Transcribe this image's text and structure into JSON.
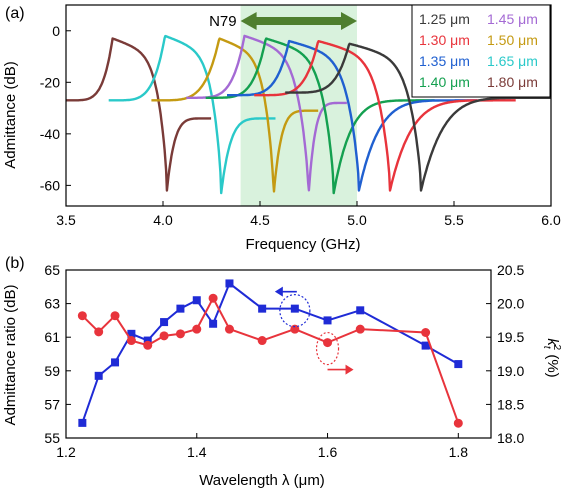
{
  "chart_data": [
    {
      "type": "line",
      "panel_label": "(a)",
      "xlabel": "Frequency (GHz)",
      "ylabel": "Admittance (dB)",
      "xlim": [
        3.5,
        6.0
      ],
      "ylim": [
        -68,
        10
      ],
      "xticks": [
        3.5,
        4.0,
        4.5,
        5.0,
        5.5,
        6.0
      ],
      "yticks": [
        -60,
        -40,
        -20,
        0
      ],
      "xtick_labels": [
        "3.5",
        "4.0",
        "4.5",
        "5.0",
        "5.5",
        "6.0"
      ],
      "ytick_labels": [
        "-60",
        "-40",
        "-20",
        "0"
      ],
      "band": {
        "label": "N79",
        "from": 4.4,
        "to": 5.0,
        "color": "#d9f2dd",
        "arrow_color": "#4f7f2f"
      },
      "legend_position": "top-right",
      "series": [
        {
          "name": "1.80 μm",
          "color": "#7a3b38",
          "x_range": [
            3.5,
            4.25
          ],
          "resonance": 3.74,
          "anti_resonance": 4.02,
          "res_db": -3,
          "anti_db": -62,
          "left_db": -27,
          "right_db": -34
        },
        {
          "name": "1.65 μm",
          "color": "#2ac9c9",
          "x_range": [
            3.72,
            4.58
          ],
          "resonance": 4.01,
          "anti_resonance": 4.3,
          "res_db": -2,
          "anti_db": -63,
          "left_db": -27,
          "right_db": -34
        },
        {
          "name": "1.50 μm",
          "color": "#c49a12",
          "x_range": [
            3.94,
            4.8
          ],
          "resonance": 4.29,
          "anti_resonance": 4.57,
          "res_db": -3,
          "anti_db": -64,
          "left_db": -27,
          "right_db": -31
        },
        {
          "name": "1.45 μm",
          "color": "#a46ad4",
          "x_range": [
            4.12,
            4.95
          ],
          "resonance": 4.42,
          "anti_resonance": 4.75,
          "res_db": -2,
          "anti_db": -64,
          "left_db": -26,
          "right_db": -28
        },
        {
          "name": "1.40 μm",
          "color": "#14a050",
          "x_range": [
            4.22,
            5.4
          ],
          "resonance": 4.53,
          "anti_resonance": 4.88,
          "res_db": -3,
          "anti_db": -63,
          "left_db": -26,
          "right_db": -27
        },
        {
          "name": "1.35 μm",
          "color": "#2060d0",
          "x_range": [
            4.33,
            5.62
          ],
          "resonance": 4.65,
          "anti_resonance": 5.01,
          "res_db": -4,
          "anti_db": -62,
          "left_db": -25,
          "right_db": -27
        },
        {
          "name": "1.30 μm",
          "color": "#e8343c",
          "x_range": [
            4.47,
            5.82
          ],
          "resonance": 4.8,
          "anti_resonance": 5.17,
          "res_db": -4,
          "anti_db": -62,
          "left_db": -25,
          "right_db": -27
        },
        {
          "name": "1.25 μm",
          "color": "#3a3a3a",
          "x_range": [
            4.63,
            6.0
          ],
          "resonance": 4.96,
          "anti_resonance": 5.33,
          "res_db": -5,
          "anti_db": -62,
          "left_db": -24,
          "right_db": -26
        }
      ],
      "legend_entries": [
        {
          "label": "1.25 μm",
          "color": "#3a3a3a"
        },
        {
          "label": "1.45 μm",
          "color": "#a46ad4"
        },
        {
          "label": "1.30 μm",
          "color": "#e8343c"
        },
        {
          "label": "1.50 μm",
          "color": "#c49a12"
        },
        {
          "label": "1.35 μm",
          "color": "#2060d0"
        },
        {
          "label": "1.65 μm",
          "color": "#2ac9c9"
        },
        {
          "label": "1.40 μm",
          "color": "#14a050"
        },
        {
          "label": "1.80 μm",
          "color": "#7a3b38"
        }
      ]
    },
    {
      "type": "line",
      "panel_label": "(b)",
      "xlabel": "Wavelength λ (μm)",
      "ylabel": "Admittance ratio (dB)",
      "ylabel_right": "k_t^2 (%)",
      "xlim": [
        1.2,
        1.85
      ],
      "ylim": [
        55,
        65
      ],
      "ylim_right": [
        18.0,
        20.5
      ],
      "xticks": [
        1.2,
        1.4,
        1.6,
        1.8
      ],
      "xtick_labels": [
        "1.2",
        "1.4",
        "1.6",
        "1.8"
      ],
      "yticks": [
        55,
        57,
        59,
        61,
        63,
        65
      ],
      "ytick_labels": [
        "55",
        "57",
        "59",
        "61",
        "63",
        "65"
      ],
      "yticks_right": [
        18.0,
        18.5,
        19.0,
        19.5,
        20.0,
        20.5
      ],
      "ytick_labels_right": [
        "18.0",
        "18.5",
        "19.0",
        "19.5",
        "20.0",
        "20.5"
      ],
      "series": [
        {
          "axis": "left",
          "color": "#1f2bd6",
          "marker": "square",
          "x": [
            1.225,
            1.25,
            1.275,
            1.3,
            1.325,
            1.35,
            1.375,
            1.4,
            1.425,
            1.45,
            1.5,
            1.55,
            1.6,
            1.65,
            1.75,
            1.8
          ],
          "y": [
            55.9,
            58.7,
            59.5,
            61.2,
            60.8,
            61.9,
            62.7,
            63.2,
            61.8,
            64.2,
            62.7,
            62.7,
            62.0,
            62.6,
            60.5,
            59.4
          ]
        },
        {
          "axis": "right",
          "color": "#e8343c",
          "marker": "circle",
          "x": [
            1.225,
            1.25,
            1.275,
            1.3,
            1.325,
            1.35,
            1.375,
            1.4,
            1.425,
            1.45,
            1.5,
            1.55,
            1.6,
            1.65,
            1.75,
            1.8
          ],
          "y": [
            19.82,
            19.58,
            19.82,
            19.45,
            19.38,
            19.52,
            19.55,
            19.62,
            20.08,
            19.62,
            19.45,
            19.62,
            19.42,
            19.62,
            19.57,
            18.22
          ]
        }
      ]
    }
  ]
}
